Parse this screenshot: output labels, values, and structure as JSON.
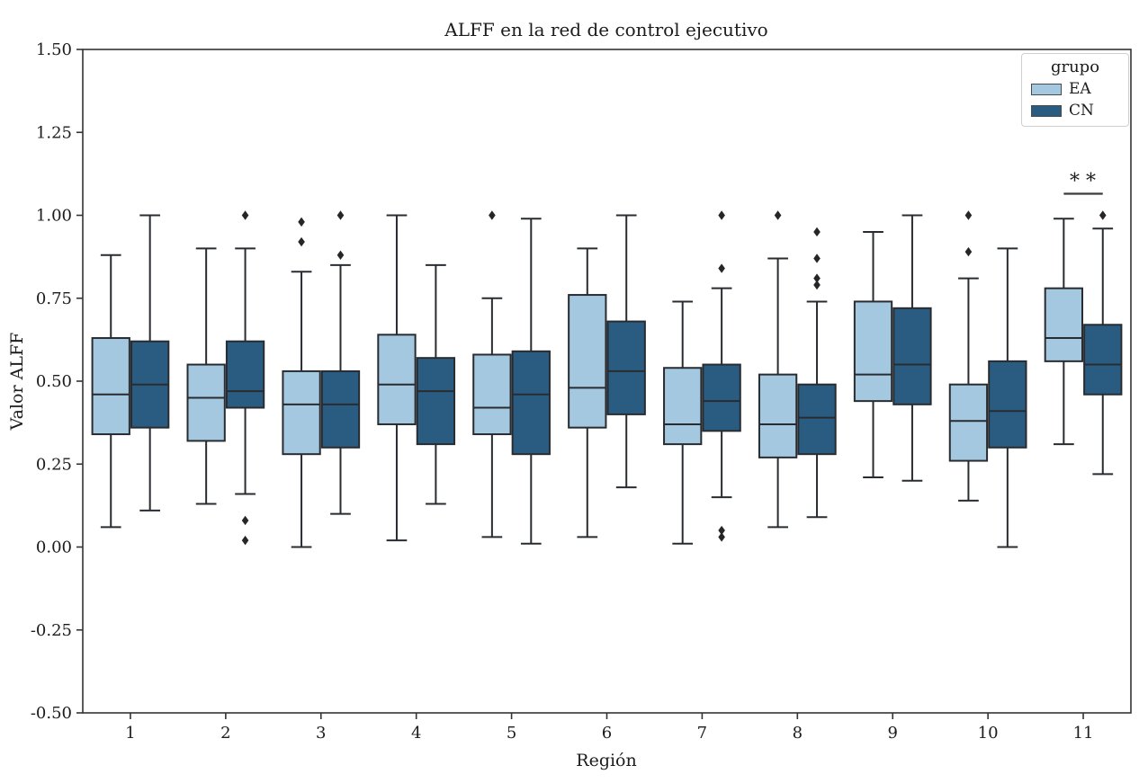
{
  "figure": {
    "title": "ALFF en la red de control ejecutivo"
  },
  "legend": {
    "title": "grupo",
    "entries": [
      {
        "label": "EA",
        "color": "#a5c8e1"
      },
      {
        "label": "CN",
        "color": "#2a5c82"
      }
    ]
  },
  "style": {
    "box_edge": "#282c30",
    "flier": "#262626",
    "spine": "#333333",
    "sig_line": "#3c3c3c",
    "background": "#ffffff"
  },
  "chart_data": {
    "type": "boxplot",
    "title": "ALFF en la red de control ejecutivo",
    "xlabel": "Región",
    "ylabel": "Valor ALFF",
    "ylim": [
      -0.5,
      1.5
    ],
    "yticks": [
      {
        "value": -0.5,
        "label": "-0.50"
      },
      {
        "value": -0.25,
        "label": "-0.25"
      },
      {
        "value": 0.0,
        "label": "0.00"
      },
      {
        "value": 0.25,
        "label": "0.25"
      },
      {
        "value": 0.5,
        "label": "0.50"
      },
      {
        "value": 0.75,
        "label": "0.75"
      },
      {
        "value": 1.0,
        "label": "1.00"
      },
      {
        "value": 1.25,
        "label": "1.25"
      },
      {
        "value": 1.5,
        "label": "1.50"
      }
    ],
    "categories": [
      "1",
      "2",
      "3",
      "4",
      "5",
      "6",
      "7",
      "8",
      "9",
      "10",
      "11"
    ],
    "grid": false,
    "legend_position": "upper right",
    "series": [
      {
        "name": "EA",
        "color": "#a5c8e1",
        "boxes": [
          {
            "whislo": 0.06,
            "q1": 0.34,
            "med": 0.46,
            "q3": 0.63,
            "whishi": 0.88,
            "fliers": []
          },
          {
            "whislo": 0.13,
            "q1": 0.32,
            "med": 0.45,
            "q3": 0.55,
            "whishi": 0.9,
            "fliers": []
          },
          {
            "whislo": 0.0,
            "q1": 0.28,
            "med": 0.43,
            "q3": 0.53,
            "whishi": 0.83,
            "fliers": [
              0.92,
              0.98
            ]
          },
          {
            "whislo": 0.02,
            "q1": 0.37,
            "med": 0.49,
            "q3": 0.64,
            "whishi": 1.0,
            "fliers": []
          },
          {
            "whislo": 0.03,
            "q1": 0.34,
            "med": 0.42,
            "q3": 0.58,
            "whishi": 0.75,
            "fliers": [
              1.0
            ]
          },
          {
            "whislo": 0.03,
            "q1": 0.36,
            "med": 0.48,
            "q3": 0.76,
            "whishi": 0.9,
            "fliers": []
          },
          {
            "whislo": 0.01,
            "q1": 0.31,
            "med": 0.37,
            "q3": 0.54,
            "whishi": 0.74,
            "fliers": []
          },
          {
            "whislo": 0.06,
            "q1": 0.27,
            "med": 0.37,
            "q3": 0.52,
            "whishi": 0.87,
            "fliers": [
              1.0
            ]
          },
          {
            "whislo": 0.21,
            "q1": 0.44,
            "med": 0.52,
            "q3": 0.74,
            "whishi": 0.95,
            "fliers": []
          },
          {
            "whislo": 0.14,
            "q1": 0.26,
            "med": 0.38,
            "q3": 0.49,
            "whishi": 0.81,
            "fliers": [
              0.89,
              1.0
            ]
          },
          {
            "whislo": 0.31,
            "q1": 0.56,
            "med": 0.63,
            "q3": 0.78,
            "whishi": 0.99,
            "fliers": []
          }
        ]
      },
      {
        "name": "CN",
        "color": "#2a5c82",
        "boxes": [
          {
            "whislo": 0.11,
            "q1": 0.36,
            "med": 0.49,
            "q3": 0.62,
            "whishi": 1.0,
            "fliers": []
          },
          {
            "whislo": 0.16,
            "q1": 0.42,
            "med": 0.47,
            "q3": 0.62,
            "whishi": 0.9,
            "fliers": [
              0.02,
              0.08,
              1.0
            ]
          },
          {
            "whislo": 0.1,
            "q1": 0.3,
            "med": 0.43,
            "q3": 0.53,
            "whishi": 0.85,
            "fliers": [
              0.88,
              1.0
            ]
          },
          {
            "whislo": 0.13,
            "q1": 0.31,
            "med": 0.47,
            "q3": 0.57,
            "whishi": 0.85,
            "fliers": []
          },
          {
            "whislo": 0.01,
            "q1": 0.28,
            "med": 0.46,
            "q3": 0.59,
            "whishi": 0.99,
            "fliers": []
          },
          {
            "whislo": 0.18,
            "q1": 0.4,
            "med": 0.53,
            "q3": 0.68,
            "whishi": 1.0,
            "fliers": []
          },
          {
            "whislo": 0.15,
            "q1": 0.35,
            "med": 0.44,
            "q3": 0.55,
            "whishi": 0.78,
            "fliers": [
              0.03,
              0.05,
              0.84,
              1.0
            ]
          },
          {
            "whislo": 0.09,
            "q1": 0.28,
            "med": 0.39,
            "q3": 0.49,
            "whishi": 0.74,
            "fliers": [
              0.79,
              0.81,
              0.87,
              0.95
            ]
          },
          {
            "whislo": 0.2,
            "q1": 0.43,
            "med": 0.55,
            "q3": 0.72,
            "whishi": 1.0,
            "fliers": []
          },
          {
            "whislo": 0.0,
            "q1": 0.3,
            "med": 0.41,
            "q3": 0.56,
            "whishi": 0.9,
            "fliers": []
          },
          {
            "whislo": 0.22,
            "q1": 0.46,
            "med": 0.55,
            "q3": 0.67,
            "whishi": 0.96,
            "fliers": [
              1.0
            ]
          }
        ]
      }
    ],
    "annotation": {
      "text": "**",
      "category": "11",
      "y": 1.065
    }
  }
}
